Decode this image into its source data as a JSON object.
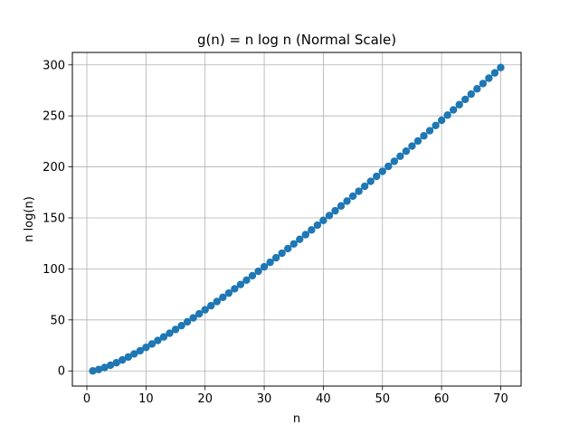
{
  "chart_data": {
    "type": "line",
    "title": "g(n) = n log n (Normal Scale)",
    "xlabel": "n",
    "ylabel": "n log(n)",
    "xlim": [
      -2.45,
      73.45
    ],
    "ylim": [
      -14.87,
      312.2
    ],
    "xticks": [
      0,
      10,
      20,
      30,
      40,
      50,
      60,
      70
    ],
    "yticks": [
      0,
      50,
      100,
      150,
      200,
      250,
      300
    ],
    "xtick_labels": [
      "0",
      "10",
      "20",
      "30",
      "40",
      "50",
      "60",
      "70"
    ],
    "ytick_labels": [
      "0",
      "50",
      "100",
      "150",
      "200",
      "250",
      "300"
    ],
    "grid": true,
    "marker": "circle",
    "line_color": "#1f77b4",
    "x": [
      1,
      2,
      3,
      4,
      5,
      6,
      7,
      8,
      9,
      10,
      11,
      12,
      13,
      14,
      15,
      16,
      17,
      18,
      19,
      20,
      21,
      22,
      23,
      24,
      25,
      26,
      27,
      28,
      29,
      30,
      31,
      32,
      33,
      34,
      35,
      36,
      37,
      38,
      39,
      40,
      41,
      42,
      43,
      44,
      45,
      46,
      47,
      48,
      49,
      50,
      51,
      52,
      53,
      54,
      55,
      56,
      57,
      58,
      59,
      60,
      61,
      62,
      63,
      64,
      65,
      66,
      67,
      68,
      69,
      70
    ],
    "y": [
      0,
      1.39,
      3.3,
      5.55,
      8.05,
      10.75,
      13.62,
      16.64,
      19.78,
      23.03,
      26.38,
      29.82,
      33.34,
      36.95,
      40.62,
      44.36,
      48.16,
      52.03,
      55.94,
      59.91,
      63.93,
      68.0,
      72.12,
      76.27,
      80.47,
      84.71,
      88.99,
      93.3,
      97.65,
      102.04,
      106.45,
      110.9,
      115.38,
      119.9,
      124.44,
      129.01,
      133.6,
      138.23,
      142.88,
      147.56,
      152.26,
      156.98,
      161.73,
      166.51,
      171.3,
      176.12,
      180.96,
      185.82,
      190.7,
      195.6,
      200.52,
      205.46,
      210.42,
      215.4,
      220.4,
      225.42,
      230.45,
      235.5,
      240.57,
      245.66,
      250.76,
      255.88,
      261.02,
      266.17,
      271.33,
      276.52,
      281.72,
      286.93,
      292.15,
      297.4
    ]
  }
}
